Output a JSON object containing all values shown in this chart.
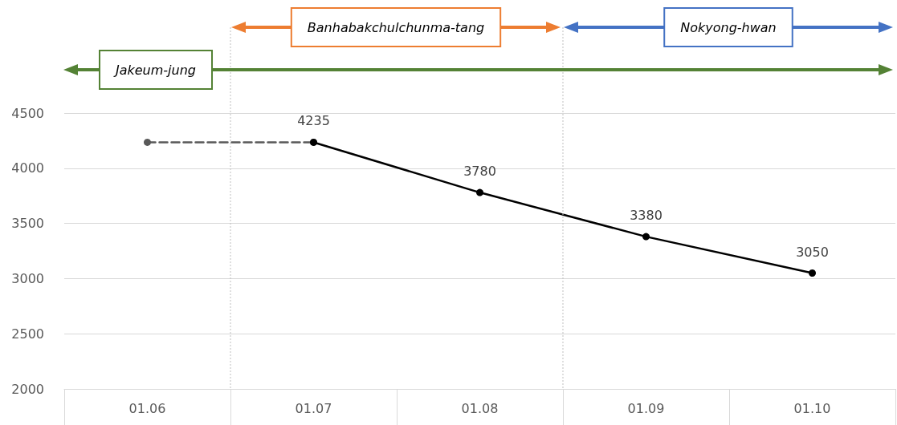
{
  "chart_data": {
    "type": "line",
    "categories": [
      "01.06",
      "01.07",
      "01.08",
      "01.09",
      "01.10"
    ],
    "series": [
      {
        "color": "#595959",
        "values": [
          4235,
          4235,
          null,
          null,
          null
        ],
        "line_style": "dashed"
      },
      {
        "color": "#000000",
        "values": [
          null,
          4235,
          3780,
          3380,
          3050
        ],
        "line_style": "solid",
        "value_labels": [
          null,
          "4235",
          "3780",
          "3380",
          "3050"
        ]
      }
    ],
    "ylim": [
      2000,
      4500
    ],
    "yticks": [
      2000,
      2500,
      3000,
      3500,
      4000,
      4500
    ],
    "grid": "y",
    "marker": "circle",
    "annotations": [
      "Banhabakchulchunma-tang",
      "Nokyong-hwan",
      "Jakeum-jung"
    ]
  }
}
